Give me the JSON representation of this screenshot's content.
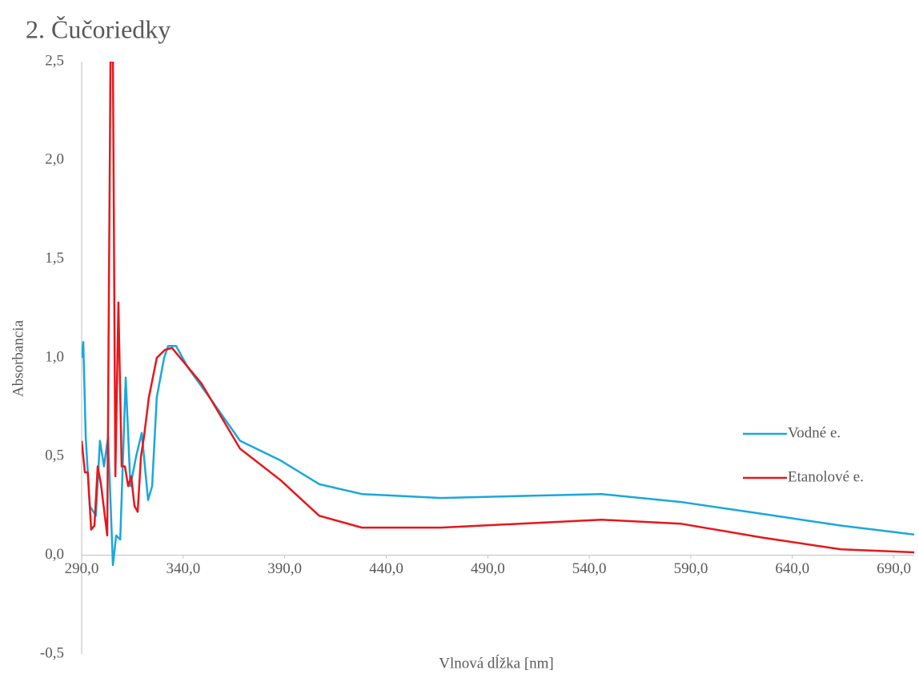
{
  "chart_data": {
    "type": "line",
    "title": "2. Čučoriedky",
    "x_label": "Vlnová dĺžka [nm]",
    "y_label": "Absorbancia",
    "xlim": [
      290,
      700
    ],
    "xticks": [
      {
        "value": 290,
        "label": "290,0"
      },
      {
        "value": 340,
        "label": "340,0"
      },
      {
        "value": 390,
        "label": "390,0"
      },
      {
        "value": 440,
        "label": "440,0"
      },
      {
        "value": 490,
        "label": "490,0"
      },
      {
        "value": 540,
        "label": "540,0"
      },
      {
        "value": 590,
        "label": "590,0"
      },
      {
        "value": 640,
        "label": "640,0"
      },
      {
        "value": 690,
        "label": "690,0"
      }
    ],
    "ylim": [
      -0.5,
      2.5
    ],
    "yticks": [
      {
        "value": -0.5,
        "label": "-0,5"
      },
      {
        "value": 0,
        "label": "0,0"
      },
      {
        "value": 0.5,
        "label": "0,5"
      },
      {
        "value": 1,
        "label": "1,0"
      },
      {
        "value": 1.5,
        "label": "1,5"
      },
      {
        "value": 2,
        "label": "2,0"
      },
      {
        "value": 2.5,
        "label": "2,5"
      }
    ],
    "grid": false,
    "legend": "right",
    "series": [
      {
        "name": "Vodné e.",
        "color": "#1aa7dc",
        "x": [
          290,
          290.8,
          292,
          294,
          297,
          299,
          301,
          303,
          305.4,
          307,
          309,
          311.7,
          314,
          316.8,
          319.6,
          322.7,
          324.7,
          327,
          330.6,
          332.6,
          336.5,
          342.4,
          355,
          368,
          388,
          407,
          428,
          467,
          506,
          546,
          585,
          625,
          664,
          700
        ],
        "values": [
          1.0,
          1.08,
          0.6,
          0.25,
          0.2,
          0.58,
          0.45,
          0.6,
          -0.05,
          0.1,
          0.08,
          0.9,
          0.35,
          0.5,
          0.62,
          0.28,
          0.35,
          0.8,
          1.0,
          1.06,
          1.06,
          0.95,
          0.77,
          0.58,
          0.48,
          0.36,
          0.31,
          0.29,
          0.3,
          0.31,
          0.27,
          0.21,
          0.15,
          0.105
        ]
      },
      {
        "name": "Etanolové e.",
        "color": "#e8161a",
        "x": [
          290,
          291.6,
          293,
          294.7,
          296.3,
          297.9,
          299.5,
          301.4,
          302.6,
          304.2,
          305.4,
          306.6,
          308.1,
          309.7,
          311.3,
          312.9,
          314.4,
          316,
          317.6,
          319.2,
          320.7,
          323.1,
          327,
          331,
          334.5,
          349,
          368,
          388,
          407,
          428,
          467,
          506,
          546,
          585,
          625,
          664,
          700
        ],
        "values": [
          0.58,
          0.42,
          0.42,
          0.13,
          0.15,
          0.45,
          0.36,
          0.2,
          0.1,
          2.5,
          2.5,
          0.4,
          1.28,
          0.45,
          0.45,
          0.35,
          0.4,
          0.25,
          0.22,
          0.5,
          0.6,
          0.8,
          1.0,
          1.04,
          1.05,
          0.87,
          0.54,
          0.38,
          0.2,
          0.14,
          0.14,
          0.16,
          0.18,
          0.16,
          0.09,
          0.03,
          0.015
        ]
      }
    ]
  }
}
